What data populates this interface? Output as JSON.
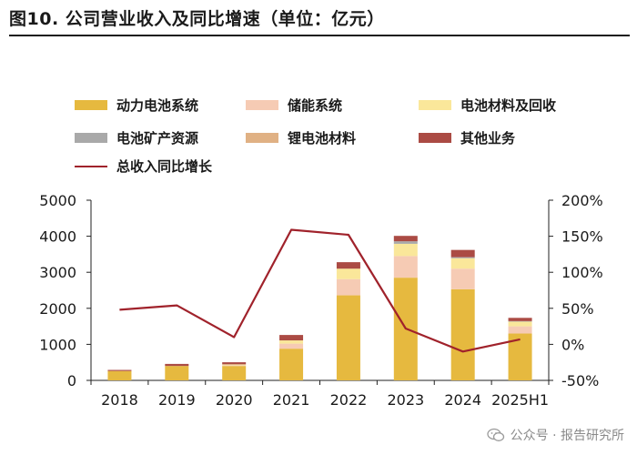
{
  "figure": {
    "title": "图10. 公司营业收入及同比增速（单位：亿元）"
  },
  "watermark": {
    "text": "公众号 · 报告研究所",
    "icon": "wechat-icon"
  },
  "chart_data": {
    "type": "bar",
    "stacked": true,
    "categories": [
      "2018",
      "2019",
      "2020",
      "2021",
      "2022",
      "2023",
      "2024",
      "2025H1"
    ],
    "series": [
      {
        "name": "动力电池系统",
        "color": "#e6b93f",
        "values": [
          260,
          400,
          400,
          880,
          2360,
          2850,
          2530,
          1300
        ]
      },
      {
        "name": "储能系统",
        "color": "#f6cbb4",
        "values": [
          0,
          0,
          20,
          140,
          450,
          600,
          570,
          200
        ]
      },
      {
        "name": "电池材料及回收",
        "color": "#fae79a",
        "values": [
          0,
          0,
          25,
          90,
          290,
          340,
          290,
          130
        ]
      },
      {
        "name": "电池矿产资源",
        "color": "#a9a9a9",
        "values": [
          0,
          0,
          0,
          0,
          0,
          70,
          30,
          15
        ]
      },
      {
        "name": "锂电池材料",
        "color": "#e0b184",
        "values": [
          0,
          0,
          0,
          0,
          0,
          0,
          0,
          0
        ]
      },
      {
        "name": "其他业务",
        "color": "#ab4b44",
        "values": [
          30,
          57,
          58,
          150,
          180,
          150,
          200,
          90
        ]
      }
    ],
    "line": {
      "name": "总收入同比增长",
      "color": "#a0222b",
      "axis": "right",
      "values": [
        48,
        54,
        10,
        159,
        152,
        22,
        -10,
        7
      ]
    },
    "y_left": {
      "min": 0,
      "max": 5000,
      "ticks": [
        0,
        1000,
        2000,
        3000,
        4000,
        5000
      ],
      "tick_labels": [
        "0",
        "1000",
        "2000",
        "3000",
        "4000",
        "5000"
      ]
    },
    "y_right": {
      "min": -50,
      "max": 200,
      "ticks": [
        -50,
        0,
        50,
        100,
        150,
        200
      ],
      "tick_labels": [
        "-50%",
        "0%",
        "50%",
        "100%",
        "150%",
        "200%"
      ]
    },
    "grid": false,
    "legend_position": "top"
  }
}
